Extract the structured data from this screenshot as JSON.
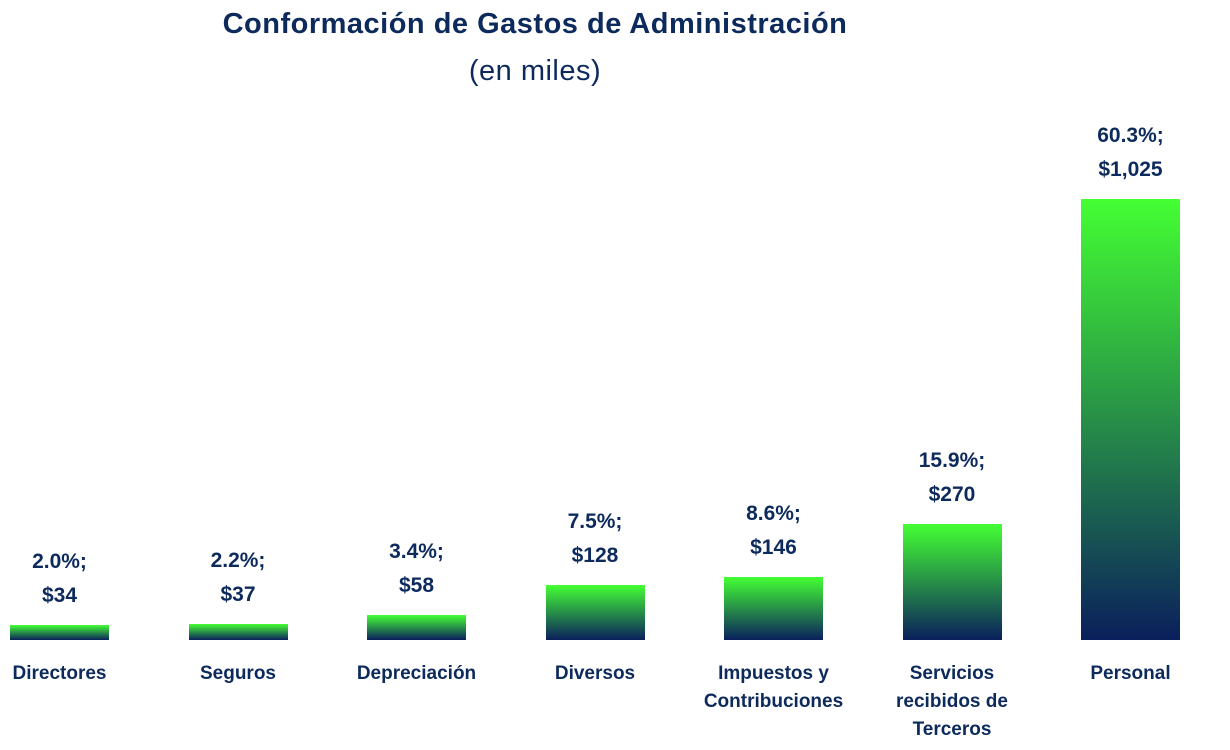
{
  "chart_data": {
    "type": "bar",
    "title": "Conformación de Gastos de Administración",
    "subtitle": "(en miles)",
    "categories": [
      "Directores",
      "Seguros",
      "Depreciación",
      "Diversos",
      "Impuestos y Contribuciones",
      "Servicios recibidos de Terceros",
      "Personal"
    ],
    "values": [
      34,
      37,
      58,
      128,
      146,
      270,
      1025
    ],
    "value_labels": [
      "2.0%; $34",
      "2.2%; $37",
      "3.4%; $58",
      "7.5%; $128",
      "8.6%; $146",
      "15.9%; $270",
      "60.3%; $1,025"
    ],
    "color": [
      "#44ff33",
      "#0a1f5c"
    ]
  }
}
